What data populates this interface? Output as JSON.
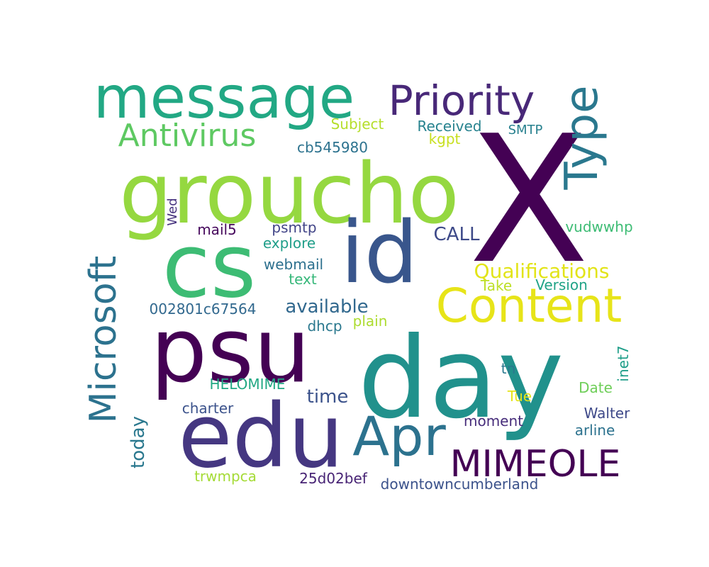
{
  "words": [
    {
      "text": "X",
      "color": "#440154"
    },
    {
      "text": "day",
      "color": "#21918c"
    },
    {
      "text": "groucho",
      "color": "#95d840"
    },
    {
      "text": "psu",
      "color": "#440154"
    },
    {
      "text": "cs",
      "color": "#3dbc74"
    },
    {
      "text": "id",
      "color": "#39568c"
    },
    {
      "text": "edu",
      "color": "#453781"
    },
    {
      "text": "message",
      "color": "#22a884"
    },
    {
      "text": "Content",
      "color": "#e7e419"
    },
    {
      "text": "Apr",
      "color": "#2c728e"
    },
    {
      "text": "Priority",
      "color": "#482878"
    },
    {
      "text": "Type",
      "color": "#2a788e"
    },
    {
      "text": "Microsoft",
      "color": "#2c728e"
    },
    {
      "text": "MIMEOLE",
      "color": "#440154"
    },
    {
      "text": "Antivirus",
      "color": "#5ec962"
    },
    {
      "text": "Qualifications",
      "color": "#e2e418"
    },
    {
      "text": "available",
      "color": "#31688e"
    },
    {
      "text": "time",
      "color": "#3b528b"
    },
    {
      "text": "CALL",
      "color": "#3e4a89"
    },
    {
      "text": "today",
      "color": "#2a788e"
    },
    {
      "text": "Received",
      "color": "#26828e"
    },
    {
      "text": "Subject",
      "color": "#b5de2b"
    },
    {
      "text": "cb545980",
      "color": "#2c728e"
    },
    {
      "text": "kgpt",
      "color": "#c8e020"
    },
    {
      "text": "SMTP",
      "color": "#27808e"
    },
    {
      "text": "Wed",
      "color": "#46337e"
    },
    {
      "text": "mail5",
      "color": "#46085c"
    },
    {
      "text": "psmtp",
      "color": "#414487"
    },
    {
      "text": "explore",
      "color": "#1f9e89"
    },
    {
      "text": "webmail",
      "color": "#2d708e"
    },
    {
      "text": "text",
      "color": "#35b779"
    },
    {
      "text": "vudwwhp",
      "color": "#3dbc74"
    },
    {
      "text": "Take",
      "color": "#bddf26"
    },
    {
      "text": "Version",
      "color": "#20a386"
    },
    {
      "text": "002801c67564",
      "color": "#31688e"
    },
    {
      "text": "dhcp",
      "color": "#2a788e"
    },
    {
      "text": "plain",
      "color": "#addc30"
    },
    {
      "text": "tn",
      "color": "#2a788e"
    },
    {
      "text": "HELOMIME",
      "color": "#22a884"
    },
    {
      "text": "Date",
      "color": "#6ece58"
    },
    {
      "text": "inet7",
      "color": "#1f9e89"
    },
    {
      "text": "Tue",
      "color": "#e5e419"
    },
    {
      "text": "charter",
      "color": "#3b528b"
    },
    {
      "text": "Walter",
      "color": "#3e4989"
    },
    {
      "text": "moment",
      "color": "#472d7b"
    },
    {
      "text": "arline",
      "color": "#2c728e"
    },
    {
      "text": "trwmpca",
      "color": "#a5db36"
    },
    {
      "text": "25d02bef",
      "color": "#482475"
    },
    {
      "text": "downtowncumberland",
      "color": "#3b528b"
    }
  ]
}
